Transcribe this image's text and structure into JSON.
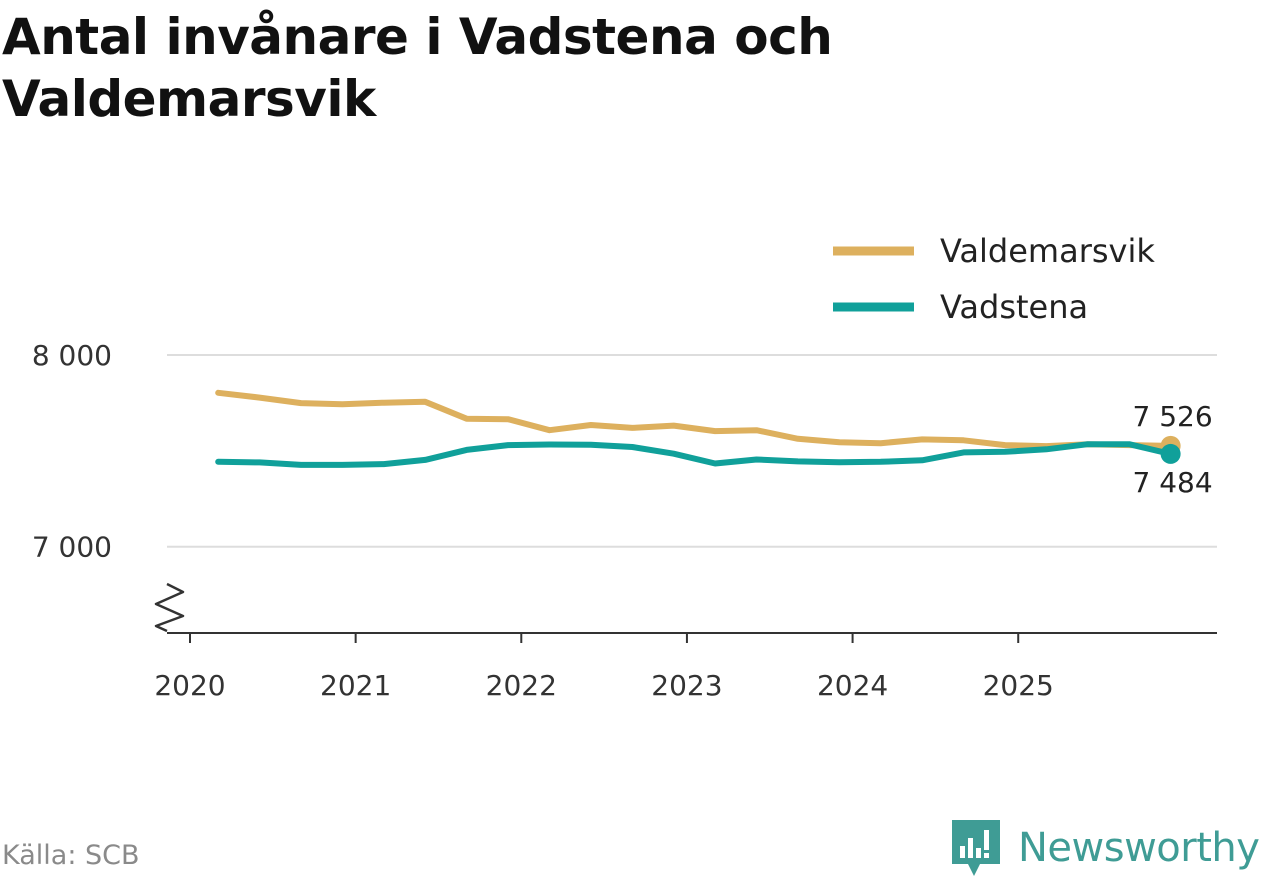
{
  "title": "Antal invånare i Vadstena och Valdemarsvik",
  "source": "Källa: SCB",
  "brand": "Newsworthy",
  "colors": {
    "Valdemarsvik": "#ddb05e",
    "Vadstena": "#10a09a",
    "grid": "#dddddd",
    "axis": "#333333"
  },
  "chart_data": {
    "type": "line",
    "title": "Antal invånare i Vadstena och Valdemarsvik",
    "xlabel": "",
    "ylabel": "",
    "ylim": [
      6550,
      8000
    ],
    "y_ticks": [
      {
        "value": 7000,
        "label": "7 000"
      },
      {
        "value": 8000,
        "label": "8 000"
      }
    ],
    "x_ticks": [
      {
        "value": 2020,
        "label": "2020"
      },
      {
        "value": 2021,
        "label": "2021"
      },
      {
        "value": 2022,
        "label": "2022"
      },
      {
        "value": 2023,
        "label": "2023"
      },
      {
        "value": 2024,
        "label": "2024"
      },
      {
        "value": 2025,
        "label": "2025"
      }
    ],
    "xlim": [
      2020,
      2026.2
    ],
    "x": [
      2020.17,
      2020.42,
      2020.67,
      2020.92,
      2021.17,
      2021.42,
      2021.67,
      2021.92,
      2022.17,
      2022.42,
      2022.67,
      2022.92,
      2023.17,
      2023.42,
      2023.67,
      2023.92,
      2024.17,
      2024.42,
      2024.67,
      2024.92,
      2025.17,
      2025.42,
      2025.67,
      2025.92
    ],
    "series": [
      {
        "name": "Valdemarsvik",
        "values": [
          7803,
          7778,
          7749,
          7743,
          7751,
          7756,
          7668,
          7665,
          7608,
          7635,
          7620,
          7632,
          7603,
          7608,
          7563,
          7545,
          7540,
          7560,
          7555,
          7530,
          7525,
          7535,
          7530,
          7526
        ],
        "end_label": "7 526"
      },
      {
        "name": "Vadstena",
        "values": [
          7443,
          7440,
          7427,
          7427,
          7431,
          7453,
          7505,
          7530,
          7533,
          7532,
          7520,
          7485,
          7434,
          7455,
          7445,
          7441,
          7443,
          7451,
          7492,
          7495,
          7508,
          7535,
          7535,
          7484
        ],
        "end_label": "7 484"
      }
    ],
    "legend": "top-right"
  }
}
